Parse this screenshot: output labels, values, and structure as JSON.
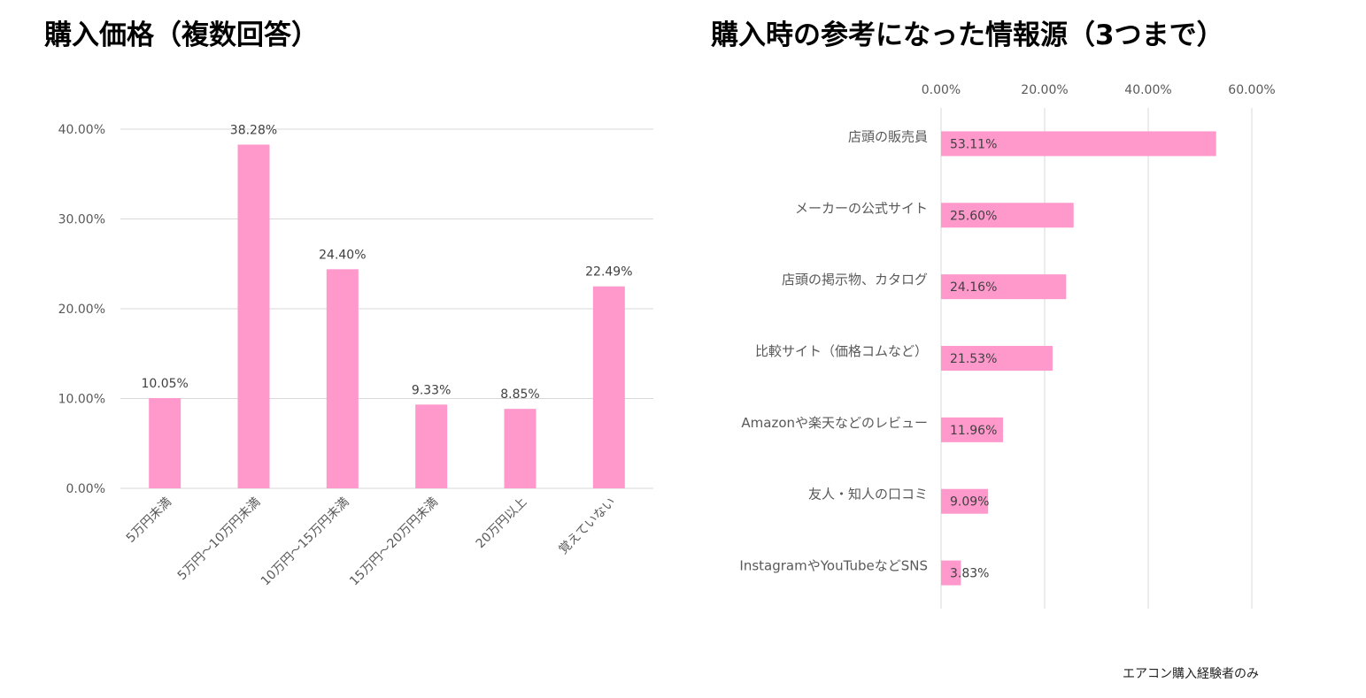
{
  "footnote": "エアコン購入経験者のみ",
  "colors": {
    "bar": "#FF99CC",
    "grid": "#D9D9D9",
    "text": "#595959"
  },
  "chart_data": [
    {
      "type": "bar",
      "title": "購入価格（複数回答）",
      "categories": [
        "5万円未満",
        "5万円～10万円未満",
        "10万円～15万円未満",
        "15万円～20万円未満",
        "20万円以上",
        "覚えていない"
      ],
      "values": [
        10.05,
        38.28,
        24.4,
        9.33,
        8.85,
        22.49
      ],
      "value_labels": [
        "10.05%",
        "38.28%",
        "24.40%",
        "9.33%",
        "8.85%",
        "22.49%"
      ],
      "y_ticks": [
        0,
        10,
        20,
        30,
        40
      ],
      "y_tick_labels": [
        "0.00%",
        "10.00%",
        "20.00%",
        "30.00%",
        "40.00%"
      ],
      "ylim": [
        0,
        40
      ],
      "grid": true,
      "orientation": "vertical"
    },
    {
      "type": "bar",
      "title": "購入時の参考になった情報源（3つまで）",
      "categories": [
        "店頭の販売員",
        "メーカーの公式サイト",
        "店頭の掲示物、カタログ",
        "比較サイト（価格コムなど）",
        "Amazonや楽天などのレビュー",
        "友人・知人の口コミ",
        "InstagramやYouTubeなどSNS"
      ],
      "values": [
        53.11,
        25.6,
        24.16,
        21.53,
        11.96,
        9.09,
        3.83
      ],
      "value_labels": [
        "53.11%",
        "25.60%",
        "24.16%",
        "21.53%",
        "11.96%",
        "9.09%",
        "3.83%"
      ],
      "x_ticks": [
        0,
        20,
        40,
        60
      ],
      "x_tick_labels": [
        "0.00%",
        "20.00%",
        "40.00%",
        "60.00%"
      ],
      "xlim": [
        0,
        60
      ],
      "grid": true,
      "orientation": "horizontal"
    }
  ]
}
